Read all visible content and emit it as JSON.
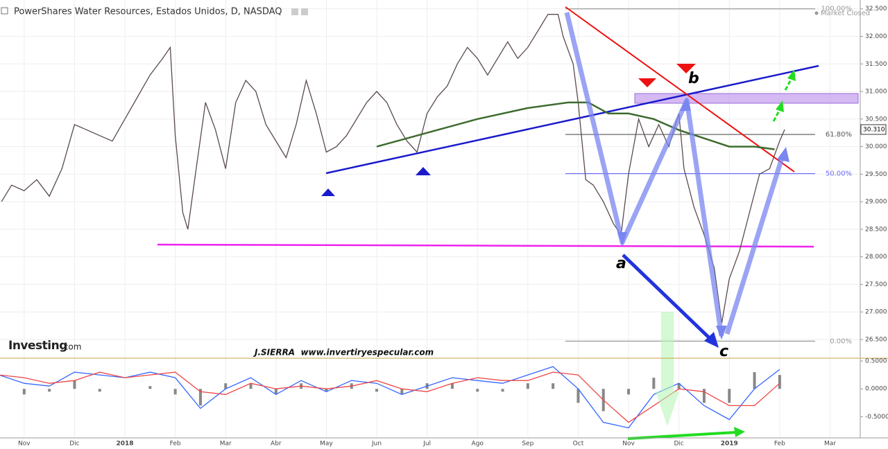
{
  "chart_data": {
    "type": "line",
    "title": "PowerShares Water Resources, Estados Unidos, D, NASDAQ",
    "status": "Market Closed",
    "brand": "Investing",
    "brand_suffix": ".com",
    "signature": "J.SIERRA  www.invertiryespecular.com",
    "letters": [
      "a",
      "b",
      "c"
    ],
    "last_price": {
      "value": 30.31,
      "label": "30.310"
    },
    "fib_levels": [
      {
        "value": 100,
        "label": "100.00%",
        "price": 32.5,
        "color": "#999999"
      },
      {
        "value": 61.8,
        "label": "61.80%",
        "price": 30.22,
        "color": "#555555"
      },
      {
        "value": 50,
        "label": "50.00%",
        "price": 29.51,
        "color": "#6666ff"
      },
      {
        "value": 0,
        "label": "0.00%",
        "price": 26.47,
        "color": "#999999"
      }
    ],
    "xlim": [
      -0.48,
      16.6
    ],
    "xticks": [
      {
        "value": 0,
        "label": "Nov"
      },
      {
        "value": 1,
        "label": "Dic"
      },
      {
        "value": 2,
        "label": "2018"
      },
      {
        "value": 3,
        "label": "Feb"
      },
      {
        "value": 4,
        "label": "Mar"
      },
      {
        "value": 5,
        "label": "Abr"
      },
      {
        "value": 6,
        "label": "May"
      },
      {
        "value": 7,
        "label": "Jun"
      },
      {
        "value": 8,
        "label": "Jul"
      },
      {
        "value": 9,
        "label": "Ago"
      },
      {
        "value": 10,
        "label": "Sep"
      },
      {
        "value": 11,
        "label": "Oct"
      },
      {
        "value": 12,
        "label": "Nov"
      },
      {
        "value": 13,
        "label": "Dic"
      },
      {
        "value": 14,
        "label": "2019"
      },
      {
        "value": 15,
        "label": "Feb"
      },
      {
        "value": 16,
        "label": "Mar"
      }
    ],
    "ylim": [
      26.16,
      32.66
    ],
    "yticks": [
      {
        "value": 26.5,
        "label": "26.500"
      },
      {
        "value": 27,
        "label": "27.000"
      },
      {
        "value": 27.5,
        "label": "27.500"
      },
      {
        "value": 28,
        "label": "28.000"
      },
      {
        "value": 28.5,
        "label": "28.500"
      },
      {
        "value": 29,
        "label": "29.000"
      },
      {
        "value": 29.5,
        "label": "29.500"
      },
      {
        "value": 30,
        "label": "30.000"
      },
      {
        "value": 30.5,
        "label": "30.500"
      },
      {
        "value": 31,
        "label": "31.000"
      },
      {
        "value": 31.5,
        "label": "31.500"
      },
      {
        "value": 32,
        "label": "32.000"
      },
      {
        "value": 32.5,
        "label": "32.500"
      }
    ],
    "y2lim": [
      -0.88,
      0.55
    ],
    "y2ticks": [
      {
        "value": 0.5,
        "label": "0.5000"
      },
      {
        "value": 0,
        "label": "0.0000"
      },
      {
        "value": -0.5,
        "label": "-0.5000"
      }
    ],
    "grid": true,
    "series": [
      {
        "color": "#5a4a4a",
        "x": [
          -0.45,
          -0.25,
          0,
          0.25,
          0.5,
          0.75,
          1,
          1.25,
          1.5,
          1.75,
          2,
          2.25,
          2.5,
          2.75,
          2.9,
          3,
          3.15,
          3.25,
          3.4,
          3.6,
          3.8,
          4,
          4.2,
          4.4,
          4.6,
          4.8,
          5,
          5.2,
          5.4,
          5.6,
          5.8,
          6,
          6.2,
          6.4,
          6.6,
          6.8,
          7,
          7.2,
          7.4,
          7.6,
          7.8,
          8,
          8.2,
          8.4,
          8.6,
          8.8,
          9,
          9.2,
          9.4,
          9.6,
          9.8,
          10,
          10.2,
          10.4,
          10.6,
          10.7,
          10.9,
          11,
          11.15,
          11.3,
          11.5,
          11.7,
          11.85,
          12,
          12.2,
          12.4,
          12.6,
          12.8,
          13,
          13.1,
          13.3,
          13.5,
          13.7,
          13.85,
          14,
          14.2,
          14.4,
          14.6,
          14.8,
          15,
          15.1
        ],
        "values": [
          29.0,
          29.3,
          29.2,
          29.4,
          29.1,
          29.6,
          30.4,
          30.3,
          30.2,
          30.1,
          30.5,
          30.9,
          31.3,
          31.6,
          31.8,
          30.2,
          28.8,
          28.5,
          29.5,
          30.8,
          30.3,
          29.6,
          30.8,
          31.2,
          31.0,
          30.4,
          30.1,
          29.8,
          30.4,
          31.2,
          30.6,
          29.9,
          30.0,
          30.2,
          30.5,
          30.8,
          31.0,
          30.8,
          30.4,
          30.1,
          29.9,
          30.6,
          30.9,
          31.1,
          31.5,
          31.8,
          31.6,
          31.3,
          31.6,
          31.9,
          31.6,
          31.8,
          32.1,
          32.4,
          32.4,
          32.0,
          31.5,
          30.8,
          29.4,
          29.3,
          29.0,
          28.6,
          28.4,
          29.5,
          30.5,
          30.0,
          30.4,
          30.0,
          30.6,
          29.6,
          28.9,
          28.4,
          27.8,
          26.8,
          27.6,
          28.1,
          28.8,
          29.5,
          29.6,
          30.1,
          30.31
        ]
      },
      {
        "color": "#3d6b2e",
        "x": [
          7,
          8,
          9,
          10,
          10.8,
          11.2,
          11.6,
          12,
          12.5,
          13,
          13.5,
          14,
          14.5,
          14.9
        ],
        "values": [
          30.0,
          30.25,
          30.5,
          30.7,
          30.8,
          30.8,
          30.6,
          30.6,
          30.5,
          30.3,
          30.15,
          30.0,
          30.0,
          29.95
        ]
      },
      {
        "axis": "y2",
        "color": "#3366ff",
        "x": [
          -0.5,
          0,
          0.5,
          1,
          1.5,
          2,
          2.5,
          3,
          3.5,
          4,
          4.5,
          5,
          5.5,
          6,
          6.5,
          7,
          7.5,
          8,
          8.5,
          9,
          9.5,
          10,
          10.5,
          11,
          11.5,
          12,
          12.5,
          13,
          13.5,
          14,
          14.5,
          15
        ],
        "values": [
          0.25,
          0.1,
          0.05,
          0.3,
          0.25,
          0.2,
          0.3,
          0.2,
          -0.35,
          0.0,
          0.2,
          -0.1,
          0.15,
          -0.05,
          0.15,
          0.1,
          -0.1,
          0.05,
          0.2,
          0.15,
          0.1,
          0.25,
          0.4,
          0.0,
          -0.6,
          -0.7,
          -0.1,
          0.1,
          -0.3,
          -0.55,
          0.0,
          0.35
        ]
      },
      {
        "axis": "y2",
        "color": "#ee4444",
        "x": [
          -0.5,
          0,
          0.5,
          1,
          1.5,
          2,
          2.5,
          3,
          3.5,
          4,
          4.5,
          5,
          5.5,
          6,
          6.5,
          7,
          7.5,
          8,
          8.5,
          9,
          9.5,
          10,
          10.5,
          11,
          11.5,
          12,
          12.5,
          13,
          13.5,
          14,
          14.5,
          15
        ],
        "values": [
          0.25,
          0.2,
          0.1,
          0.15,
          0.3,
          0.2,
          0.25,
          0.3,
          -0.05,
          -0.1,
          0.1,
          0.0,
          0.05,
          0.0,
          0.05,
          0.15,
          0.0,
          -0.05,
          0.1,
          0.2,
          0.15,
          0.15,
          0.3,
          0.25,
          -0.2,
          -0.6,
          -0.3,
          0.0,
          -0.05,
          -0.3,
          -0.3,
          0.1
        ]
      },
      {
        "axis": "y2",
        "type": "bar",
        "color": "#888888",
        "x": [
          -0.5,
          0,
          0.5,
          1,
          1.5,
          2,
          2.5,
          3,
          3.5,
          4,
          4.5,
          5,
          5.5,
          6,
          6.5,
          7,
          7.5,
          8,
          8.5,
          9,
          9.5,
          10,
          10.5,
          11,
          11.5,
          12,
          12.5,
          13,
          13.5,
          14,
          14.5,
          15
        ],
        "values": [
          0,
          -0.1,
          -0.05,
          0.15,
          -0.05,
          0,
          0.05,
          -0.1,
          -0.3,
          0.1,
          0.1,
          -0.1,
          0.1,
          -0.05,
          0.1,
          -0.05,
          -0.1,
          0.1,
          0.1,
          -0.05,
          -0.05,
          0.1,
          0.1,
          -0.25,
          -0.4,
          -0.1,
          0.2,
          0.1,
          -0.25,
          -0.25,
          0.3,
          0.25
        ]
      }
    ]
  }
}
